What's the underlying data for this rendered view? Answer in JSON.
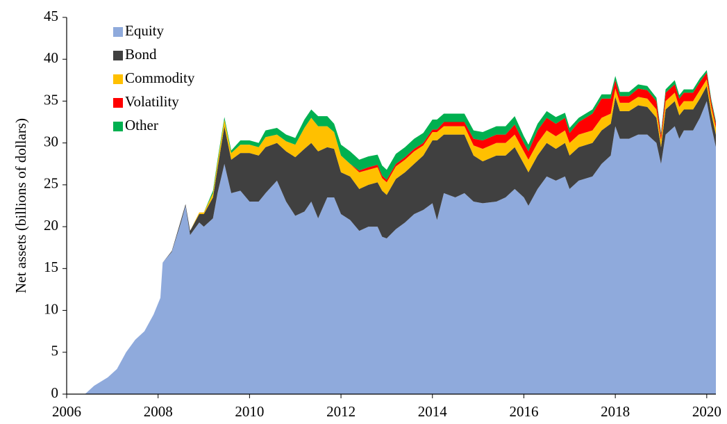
{
  "chart_data": {
    "type": "stacked_area",
    "y_label": "Net assets (billions of dollars)",
    "xlim": [
      2006,
      2020.2
    ],
    "xticks": [
      2006,
      2008,
      2010,
      2012,
      2014,
      2016,
      2018,
      2020
    ],
    "ylim": [
      0,
      45
    ],
    "yticks": [
      0,
      5,
      10,
      15,
      20,
      25,
      30,
      35,
      40,
      45
    ],
    "legend": "top-left",
    "x": [
      2006.4,
      2006.6,
      2006.9,
      2007.1,
      2007.3,
      2007.5,
      2007.7,
      2007.9,
      2008.05,
      2008.1,
      2008.3,
      2008.5,
      2008.6,
      2008.7,
      2008.9,
      2009.0,
      2009.2,
      2009.3,
      2009.45,
      2009.6,
      2009.8,
      2010.0,
      2010.2,
      2010.35,
      2010.6,
      2010.8,
      2011.0,
      2011.2,
      2011.35,
      2011.5,
      2011.7,
      2011.85,
      2012.0,
      2012.2,
      2012.4,
      2012.6,
      2012.8,
      2012.9,
      2013.0,
      2013.2,
      2013.4,
      2013.6,
      2013.8,
      2014.0,
      2014.1,
      2014.25,
      2014.5,
      2014.7,
      2014.9,
      2015.1,
      2015.4,
      2015.6,
      2015.8,
      2016.0,
      2016.1,
      2016.3,
      2016.5,
      2016.7,
      2016.9,
      2017.0,
      2017.2,
      2017.5,
      2017.7,
      2017.9,
      2018.0,
      2018.1,
      2018.3,
      2018.5,
      2018.7,
      2018.9,
      2019.0,
      2019.1,
      2019.3,
      2019.4,
      2019.5,
      2019.7,
      2019.85,
      2020.0,
      2020.1,
      2020.2
    ],
    "series": [
      {
        "name": "Equity",
        "color": "#8faadc",
        "values": [
          0,
          1,
          2,
          3,
          5,
          6.5,
          7.5,
          9.5,
          11.5,
          15.7,
          17,
          20.5,
          22.5,
          19,
          20.5,
          20,
          21,
          24,
          27.5,
          24,
          24.3,
          23,
          23,
          24,
          25.5,
          23,
          21.3,
          21.8,
          23,
          21,
          23.5,
          23.5,
          21.5,
          20.8,
          19.5,
          20,
          20,
          18.8,
          18.6,
          19.7,
          20.5,
          21.5,
          22,
          22.8,
          20.8,
          24,
          23.5,
          24,
          23,
          22.8,
          23,
          23.5,
          24.5,
          23.5,
          22.5,
          24.5,
          26,
          25.5,
          26,
          24.5,
          25.5,
          26,
          27.5,
          28.5,
          32,
          30.5,
          30.5,
          31,
          31,
          30,
          27.5,
          31,
          32,
          30.5,
          31.5,
          31.5,
          33,
          35,
          32,
          29.5
        ]
      },
      {
        "name": "Bond",
        "color": "#404040",
        "values": [
          0,
          0,
          0,
          0,
          0,
          0,
          0,
          0,
          0,
          0,
          0.1,
          0.3,
          0.2,
          0.5,
          1,
          1.5,
          2.5,
          3,
          4.5,
          4,
          4.5,
          5.8,
          5.5,
          5.5,
          4.5,
          6,
          7,
          7.5,
          7,
          8,
          6,
          5.8,
          5,
          5.2,
          5,
          5,
          5.3,
          5.5,
          5.2,
          6,
          6,
          6,
          6.5,
          7.5,
          9.5,
          7,
          7.5,
          7,
          5.5,
          5,
          5.5,
          5,
          5,
          4,
          4,
          4,
          4,
          3.8,
          4,
          4,
          4,
          4,
          4,
          3.8,
          3.5,
          3.3,
          3.3,
          3.5,
          3.3,
          3,
          2,
          3,
          3,
          2.8,
          2.5,
          2.5,
          2.3,
          1.8,
          1.5,
          1.5
        ]
      },
      {
        "name": "Commodity",
        "color": "#ffc000",
        "values": [
          0,
          0,
          0,
          0,
          0,
          0,
          0,
          0,
          0,
          0,
          0,
          0,
          0,
          0,
          0.2,
          0.2,
          0.5,
          0.7,
          0.8,
          0.8,
          1,
          1,
          1,
          1.2,
          1,
          1.2,
          1.5,
          2.5,
          3,
          3,
          2.5,
          2,
          2,
          1.5,
          2,
          1.8,
          1.8,
          1.5,
          1.5,
          1.5,
          1.5,
          1.5,
          1.2,
          1,
          1,
          1,
          1,
          1,
          1.2,
          1.5,
          1.5,
          1.5,
          1.5,
          1.5,
          1.5,
          1.5,
          1.5,
          1.5,
          1.5,
          1.5,
          1.5,
          1.5,
          1.5,
          1.2,
          1,
          1,
          1,
          1,
          1,
          1,
          0.8,
          1,
          1,
          1,
          1,
          1,
          1,
          0.8,
          0.8,
          0.8
        ]
      },
      {
        "name": "Volatility",
        "color": "#ff0000",
        "values": [
          0,
          0,
          0,
          0,
          0,
          0,
          0,
          0,
          0,
          0,
          0,
          0,
          0,
          0,
          0,
          0,
          0,
          0,
          0,
          0,
          0,
          0,
          0,
          0,
          0,
          0,
          0,
          0,
          0,
          0,
          0,
          0,
          0,
          0,
          0.2,
          0.3,
          0.3,
          0.3,
          0.3,
          0.3,
          0.3,
          0.3,
          0.3,
          0.3,
          0.3,
          0.5,
          0.5,
          0.5,
          0.8,
          1,
          1,
          1,
          1.2,
          1,
          1,
          1.5,
          1.5,
          1.5,
          1.5,
          1.2,
          1.5,
          2,
          2.3,
          1.8,
          1,
          0.8,
          0.8,
          1,
          1,
          1,
          0.6,
          1,
          1,
          1,
          1,
          1,
          1,
          0.8,
          0.6,
          0.5
        ]
      },
      {
        "name": "Other",
        "color": "#00b050",
        "values": [
          0,
          0,
          0,
          0,
          0,
          0,
          0,
          0,
          0,
          0,
          0,
          0,
          0,
          0,
          0,
          0,
          0.3,
          0.3,
          0.3,
          0.3,
          0.5,
          0.5,
          0.5,
          0.8,
          0.8,
          0.8,
          0.8,
          1,
          1,
          1.2,
          1.2,
          1,
          1.3,
          1.5,
          1.3,
          1.3,
          1.2,
          1.2,
          1.2,
          1.2,
          1.2,
          1.2,
          1.2,
          1.2,
          1.2,
          1,
          1,
          1,
          1,
          1,
          1,
          1,
          1,
          0.8,
          0.8,
          0.8,
          0.8,
          0.8,
          0.6,
          0.6,
          0.5,
          0.5,
          0.5,
          0.5,
          0.5,
          0.5,
          0.5,
          0.5,
          0.5,
          0.4,
          0.3,
          0.4,
          0.5,
          0.4,
          0.4,
          0.4,
          0.4,
          0.3,
          0.3,
          0.3
        ]
      }
    ]
  }
}
